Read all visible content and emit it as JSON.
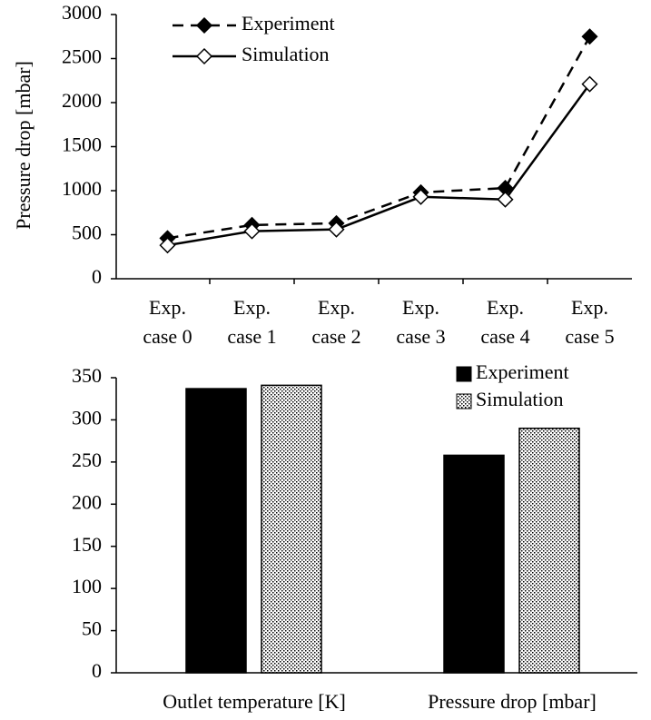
{
  "chart_data": [
    {
      "type": "line",
      "ylabel": "Pressure drop [mbar]",
      "categories": [
        "Exp.\ncase 0",
        "Exp.\ncase 1",
        "Exp.\ncase 2",
        "Exp.\ncase 3",
        "Exp.\ncase 4",
        "Exp.\ncase 5"
      ],
      "series": [
        {
          "name": "Experiment",
          "color": "#000000",
          "line_style": "dashed",
          "marker": "filled-diamond",
          "values": [
            460,
            610,
            630,
            980,
            1030,
            2750
          ]
        },
        {
          "name": "Simulation",
          "color": "#000000",
          "line_style": "solid",
          "marker": "open-diamond",
          "values": [
            380,
            540,
            560,
            930,
            900,
            2210
          ]
        }
      ],
      "ylim": [
        0,
        3000
      ],
      "yticks": [
        0,
        500,
        1000,
        1500,
        2000,
        2500,
        3000
      ],
      "legend": "upper left"
    },
    {
      "type": "bar",
      "categories": [
        "Outlet temperature [K]",
        "Pressure drop [mbar]"
      ],
      "series": [
        {
          "name": "Experiment",
          "color": "#000000",
          "pattern": "solid",
          "values": [
            337,
            258
          ]
        },
        {
          "name": "Simulation",
          "color": "#ffffff",
          "pattern": "dots",
          "values": [
            341,
            290
          ]
        }
      ],
      "ylim": [
        0,
        350
      ],
      "yticks": [
        0,
        50,
        100,
        150,
        200,
        250,
        300,
        350
      ],
      "legend": "upper right"
    }
  ]
}
